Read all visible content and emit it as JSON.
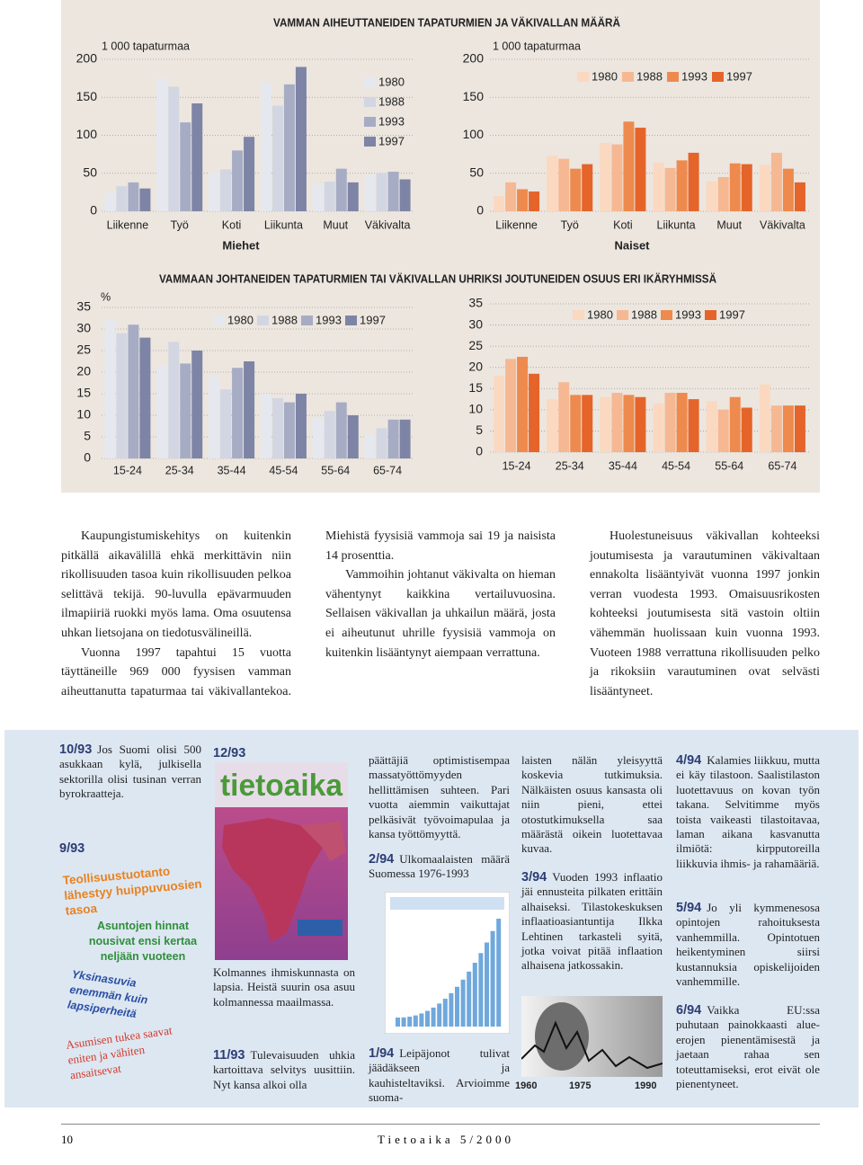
{
  "chart_data": [
    {
      "type": "bar",
      "title": "VAMMAN AIHEUTTANEIDEN TAPATURMIEN JA VÄKIVALLAN MÄÄRÄ",
      "ylabel": "1 000 tapaturmaa",
      "xlabel": "Miehet",
      "categories": [
        "Liikenne",
        "Työ",
        "Koti",
        "Liikunta",
        "Muut",
        "Väkivalta"
      ],
      "series": [
        {
          "name": "1980",
          "color": "#e6e8ef",
          "values": [
            24,
            175,
            51,
            170,
            35,
            48
          ]
        },
        {
          "name": "1988",
          "color": "#d2d6e2",
          "values": [
            33,
            164,
            55,
            139,
            39,
            50
          ]
        },
        {
          "name": "1993",
          "color": "#a7acc5",
          "values": [
            38,
            117,
            80,
            167,
            56,
            52
          ]
        },
        {
          "name": "1997",
          "color": "#7d84a5",
          "values": [
            30,
            142,
            98,
            190,
            38,
            42
          ]
        }
      ],
      "ylim": [
        0,
        200
      ],
      "yticks": [
        0,
        50,
        100,
        150,
        200
      ],
      "grid": true
    },
    {
      "type": "bar",
      "ylabel": "1 000 tapaturmaa",
      "xlabel": "Naiset",
      "categories": [
        "Liikenne",
        "Työ",
        "Koti",
        "Liikunta",
        "Muut",
        "Väkivalta"
      ],
      "series": [
        {
          "name": "1980",
          "color": "#fbd8c0",
          "values": [
            20,
            73,
            90,
            64,
            39,
            61
          ]
        },
        {
          "name": "1988",
          "color": "#f6b892",
          "values": [
            38,
            69,
            88,
            57,
            45,
            77
          ]
        },
        {
          "name": "1993",
          "color": "#ee8a4e",
          "values": [
            29,
            56,
            118,
            67,
            63,
            56
          ]
        },
        {
          "name": "1997",
          "color": "#e5642a",
          "values": [
            26,
            62,
            110,
            77,
            62,
            38
          ]
        }
      ],
      "ylim": [
        0,
        200
      ],
      "yticks": [
        0,
        50,
        100,
        150,
        200
      ],
      "grid": true
    },
    {
      "type": "bar",
      "title": "VAMMAAN JOHTANEIDEN TAPATURMIEN TAI VÄKIVALLAN UHRIKSI JOUTUNEIDEN OSUUS ERI IKÄRYHMISSÄ",
      "ylabel": "%",
      "categories": [
        "15-24",
        "25-34",
        "35-44",
        "45-54",
        "55-64",
        "65-74"
      ],
      "series": [
        {
          "name": "1980",
          "color": "#e6e8ef",
          "values": [
            32,
            21.5,
            19,
            15,
            9.5,
            5.5
          ]
        },
        {
          "name": "1988",
          "color": "#d2d6e2",
          "values": [
            29,
            27,
            16,
            14,
            11,
            7
          ]
        },
        {
          "name": "1993",
          "color": "#a7acc5",
          "values": [
            31,
            22,
            21,
            13,
            13,
            9
          ]
        },
        {
          "name": "1997",
          "color": "#7d84a5",
          "values": [
            28,
            25,
            22.5,
            15,
            10,
            9
          ]
        }
      ],
      "ylim": [
        0,
        35
      ],
      "yticks": [
        0,
        5,
        10,
        15,
        20,
        25,
        30,
        35
      ],
      "grid": true
    },
    {
      "type": "bar",
      "categories": [
        "15-24",
        "25-34",
        "35-44",
        "45-54",
        "55-64",
        "65-74"
      ],
      "series": [
        {
          "name": "1980",
          "color": "#fbd8c0",
          "values": [
            18,
            12.5,
            13,
            11.5,
            12,
            16
          ]
        },
        {
          "name": "1988",
          "color": "#f6b892",
          "values": [
            22,
            16.5,
            14,
            14,
            10,
            11
          ]
        },
        {
          "name": "1993",
          "color": "#ee8a4e",
          "values": [
            22.5,
            13.5,
            13.5,
            14,
            13,
            11
          ]
        },
        {
          "name": "1997",
          "color": "#e5642a",
          "values": [
            18.5,
            13.5,
            13,
            12.5,
            10.5,
            11
          ]
        }
      ],
      "ylim": [
        0,
        35
      ],
      "yticks": [
        0,
        5,
        10,
        15,
        20,
        25,
        30,
        35
      ],
      "grid": true
    }
  ],
  "article": {
    "paragraphs": [
      "Kaupungistumiskehitys on kuitenkin pitkällä aikavälillä ehkä merkittävin niin rikollisuuden tasoa kuin rikollisuuden pelkoa selittävä tekijä. 90-luvulla epävarmuuden ilmapiiriä ruokki myös lama. Oma osuutensa uhkan lietsojana on tiedotusvälineillä.",
      "Vuonna 1997 tapahtui 15 vuotta täyttäneille 969 000 fyysisen vamman aiheuttanutta tapaturmaa tai väkivallantekoa. Miehistä fyysisiä vammoja sai 19 ja naisista 14 prosenttia.",
      "Vammoihin johtanut väkivalta on hieman vähentynyt kaikkina vertailuvuosina. Sellaisen väkivallan ja uhkailun määrä, josta ei aiheutunut uhrille fyysisiä vammoja on kuitenkin lisääntynyt aiempaan verrattuna.",
      "Huolestuneisuus väkivallan kohteeksi joutumisesta ja varautuminen väkivaltaan ennakolta lisääntyivät vuonna 1997 jonkin verran vuodesta 1993. Omaisuusrikosten kohteeksi joutumisesta sitä vastoin oltiin vähemmän huolissaan kuin vuonna 1993. Vuoteen 1988 verrattuna rikollisuuden pelko ja rikoksiin varautuminen ovat selvästi lisääntyneet."
    ]
  },
  "sidebar": {
    "items": [
      {
        "issue": "10/93",
        "text": "Jos Suomi olisi 500 asukkaan kylä, julkisella sektorilla olisi tusinan verran byrokraatteja."
      },
      {
        "issue": "9/93",
        "headlines": [
          "Teollisuustuotanto lähestyy huippuvuosien tasoa",
          "Asuntojen hinnat nousivat ensi kertaa neljään vuoteen",
          "Yksinasuvia enemmän kuin lapsiperheitä",
          "Asumisen tukea saavat eniten ja vähiten ansaitsevat"
        ]
      },
      {
        "issue": "12/93",
        "logo": "tietoaika",
        "text": "Kolmannes ihmiskunnasta on lapsia. Heistä suurin osa asuu kolmannessa maailmassa."
      },
      {
        "issue": "11/93",
        "text": "Tulevaisuuden uhkia kartoittava selvitys uusittiin. Nyt kansa alkoi olla",
        "text_continued": "päättäjiä optimistisempaa massatyöttömyyden hellittämisen suhteen. Pari vuotta aiemmin vaikuttajat pelkäsivät työvoimapulaa ja kansa työttömyyttä."
      },
      {
        "issue": "2/94",
        "text": "Ulkomaalaisten määrä Suomessa 1976-1993"
      },
      {
        "issue": "1/94",
        "text": "Leipäjonot tulivat jäädäkseen ja kauhisteltaviksi. Arvioimme suoma-",
        "text_continued": "laisten nälän yleisyyttä koskevia tutkimuksia. Nälkäisten osuus kansasta oli niin pieni, ettei otostutkimuksella saa määrästä oikein luotettavaa kuvaa."
      },
      {
        "issue": "3/94",
        "text": "Vuoden 1993 inflaatio jäi ennusteita pilkaten erittäin alhaiseksi. Tilastokeskuksen inflaatioasiantuntija Ilkka Lehtinen tarkasteli syitä, jotka voivat pitää inflaation alhaisena jatkossakin.",
        "image_labels": [
          "1960",
          "1975",
          "1990"
        ]
      },
      {
        "issue": "4/94",
        "text": "Kalamies liikkuu, mutta ei käy tilastoon. Saalistilaston luotettavuus on kovan työn takana. Selvitimme myös toista vaikeasti tilastoitavaa, laman aikana kasvanutta ilmiötä: kirpputoreilla liikkuvia ihmis- ja rahamääriä."
      },
      {
        "issue": "5/94",
        "text": "Jo yli kymmenesosa opintojen rahoituksesta vanhemmilla. Opintotuen heikentyminen siirsi kustannuksia opiskelijoiden vanhemmille."
      },
      {
        "issue": "6/94",
        "text": "Vaikka EU:ssa puhutaan painokkaasti alue-erojen pienentämisestä ja jaetaan rahaa sen toteuttamiseksi, erot eivät ole pienentyneet."
      }
    ]
  },
  "footer": {
    "page": "10",
    "publication": "Tietoaika 5/2000"
  }
}
